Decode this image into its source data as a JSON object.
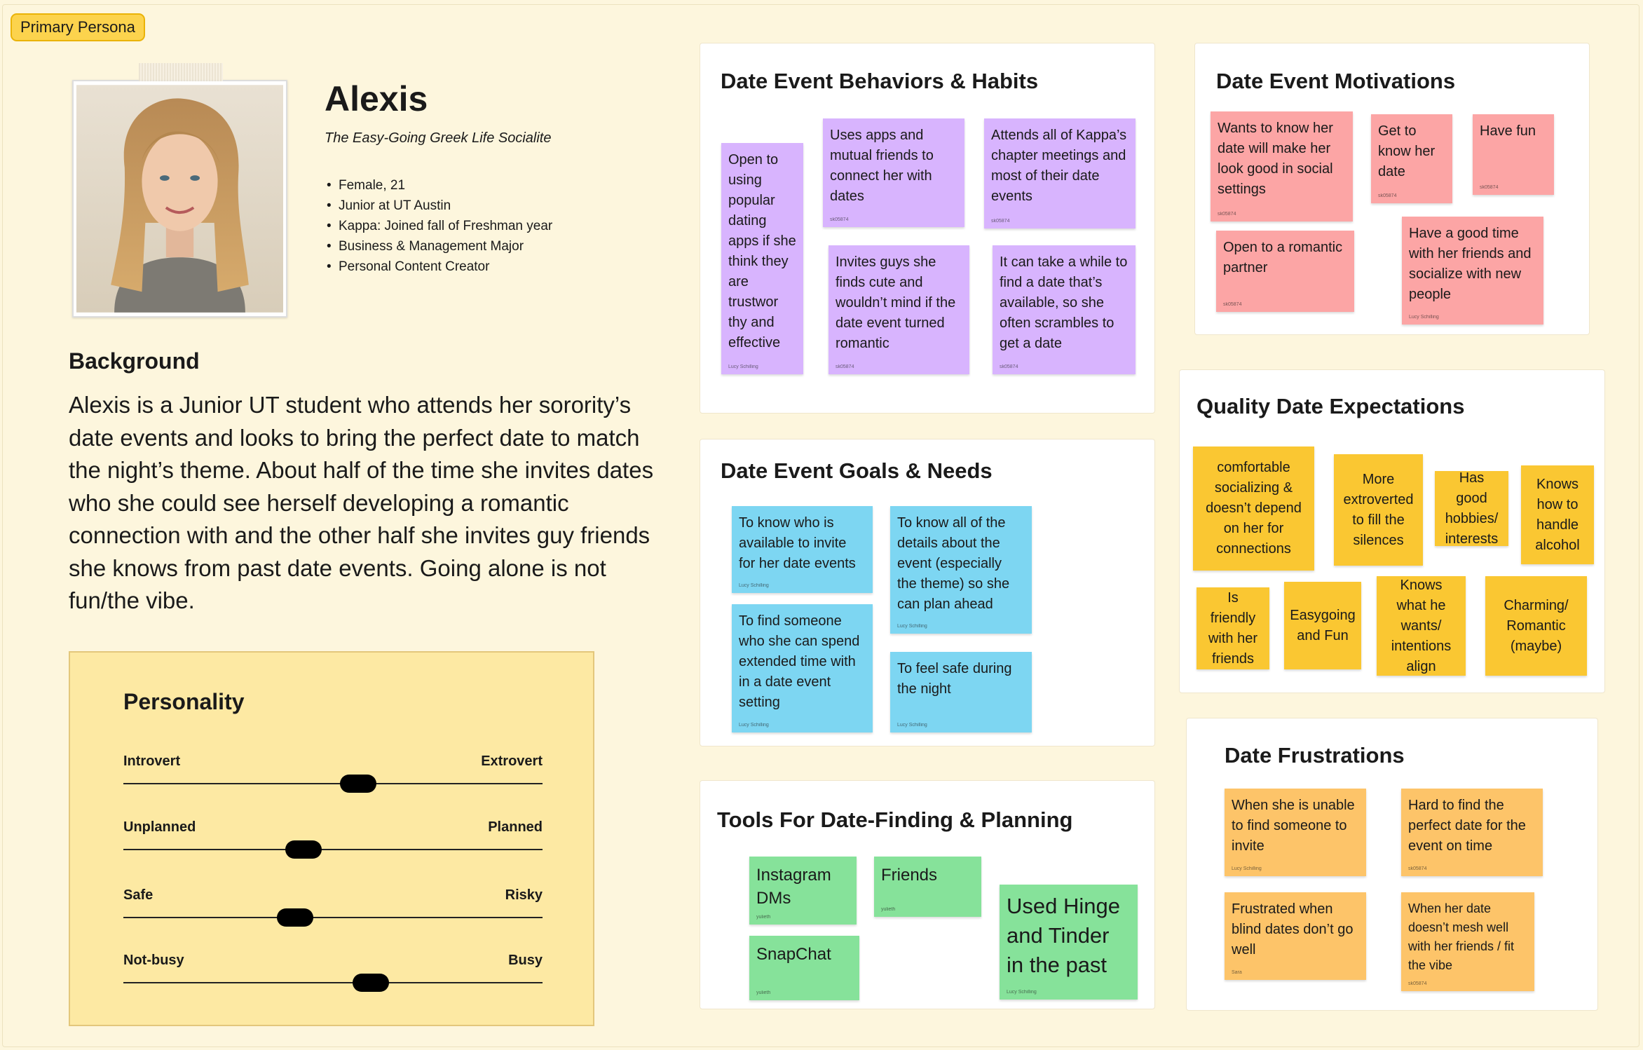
{
  "frame_tag": "Primary Persona",
  "persona": {
    "name": "Alexis",
    "subtitle": "The Easy-Going Greek Life Socialite",
    "facts": [
      "Female, 21",
      "Junior at UT Austin",
      "Kappa: Joined fall of Freshman year",
      "Business & Management Major",
      "Personal Content Creator"
    ]
  },
  "background": {
    "title": "Background",
    "text": "Alexis is a Junior UT student who attends her sorority’s date events and looks to bring the perfect date to match the night’s theme. About half of the time she invites dates who she could see herself developing a romantic connection with and the other half she invites guy friends she knows from past date events. Going alone is not fun/the vibe."
  },
  "personality": {
    "title": "Personality",
    "sliders": [
      {
        "left": "Introvert",
        "right": "Extrovert",
        "level": 0.56
      },
      {
        "left": "Unplanned",
        "right": "Planned",
        "level": 0.43
      },
      {
        "left": "Safe",
        "right": "Risky",
        "level": 0.41
      },
      {
        "left": "Not-busy",
        "right": "Busy",
        "level": 0.59
      }
    ]
  },
  "behaviors": {
    "title": "Date Event Behaviors & Habits",
    "notes": [
      {
        "text": "Open to using popular dating apps if she think they are trustwor thy and effective",
        "author": "Lucy Schilling"
      },
      {
        "text": "Uses apps and mutual friends to connect her with dates",
        "author": "sk05874"
      },
      {
        "text": "Attends all of Kappa’s chapter meetings and most of their date events",
        "author": "sk05874"
      },
      {
        "text": "Invites guys she finds cute and wouldn’t mind if the date event turned romantic",
        "author": "sk05874"
      },
      {
        "text": "It can take a while to find a date that’s available, so she often scrambles to get a date",
        "author": "sk05874"
      }
    ]
  },
  "goals": {
    "title": "Date Event Goals & Needs",
    "notes": [
      {
        "text": "To know who is available to invite for her date events",
        "author": "Lucy Schilling"
      },
      {
        "text": "To know all of the details about the event (especially the theme) so she can plan ahead",
        "author": "Lucy Schilling"
      },
      {
        "text": "To find someone who she can spend extended time with in a date event setting",
        "author": "Lucy Schilling"
      },
      {
        "text": "To feel safe during the night",
        "author": "Lucy Schilling"
      }
    ]
  },
  "tools": {
    "title": "Tools For Date-Finding & Planning",
    "notes": [
      {
        "text": "Instagram DMs",
        "author": "yulieth"
      },
      {
        "text": "Friends",
        "author": "yulieth"
      },
      {
        "text": "SnapChat",
        "author": "yulieth"
      },
      {
        "text": "Used Hinge and Tinder in the past",
        "author": "Lucy Schilling"
      }
    ]
  },
  "motivations": {
    "title": "Date Event Motivations",
    "notes": [
      {
        "text": "Wants to know her date will make her look good in social settings",
        "author": "sk05874"
      },
      {
        "text": "Get to know her date",
        "author": "sk05874"
      },
      {
        "text": "Have fun",
        "author": "sk05874"
      },
      {
        "text": "Open to a romantic partner",
        "author": "sk05874"
      },
      {
        "text": "Have a good time with her friends and socialize with new people",
        "author": "Lucy Schilling"
      }
    ]
  },
  "expectations": {
    "title": "Quality Date Expectations",
    "notes": [
      {
        "text": "comfortable socializing & doesn’t depend on her for connections"
      },
      {
        "text": "More extroverted to fill the silences"
      },
      {
        "text": "Has good hobbies/ interests"
      },
      {
        "text": "Knows how to handle alcohol"
      },
      {
        "text": "Is friendly with her friends"
      },
      {
        "text": "Easygoing and Fun"
      },
      {
        "text": "Knows what he wants/ intentions align"
      },
      {
        "text": "Charming/ Romantic (maybe)"
      }
    ]
  },
  "frustrations": {
    "title": "Date Frustrations",
    "notes": [
      {
        "text": "When she is unable to find someone to invite",
        "author": "Lucy Schilling"
      },
      {
        "text": "Hard to find the perfect date for the event on time",
        "author": "sk05874"
      },
      {
        "text": "Frustrated when blind dates don’t go well",
        "author": "Sara"
      },
      {
        "text": "When her date doesn’t mesh well with her friends / fit the vibe",
        "author": "sk05874"
      }
    ]
  }
}
